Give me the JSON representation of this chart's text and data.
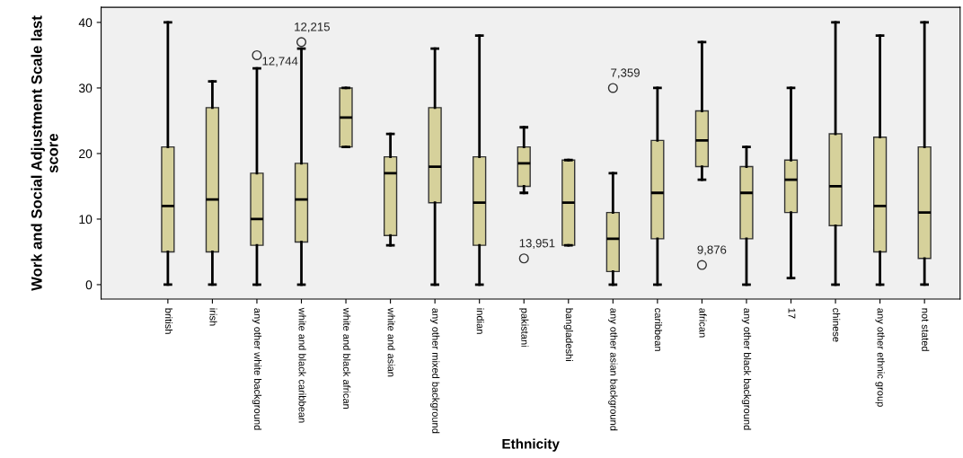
{
  "chart_data": {
    "type": "box",
    "xlabel": "Ethnicity",
    "ylabel": "Work and Social Adjustment Scale last\nscore",
    "categories": [
      "british",
      "irish",
      "any other white background",
      "white and black caribbean",
      "white and black african",
      "white and asian",
      "any other mixed background",
      "indian",
      "pakistani",
      "bangladeshi",
      "any other asian background",
      "caribbean",
      "african",
      "any other black background",
      "17",
      "chinese",
      "any other ethnic group",
      "not stated"
    ],
    "color": "#d6d19b",
    "boxes": [
      {
        "low": 0,
        "q1": 5,
        "median": 12,
        "q3": 21,
        "high": 40
      },
      {
        "low": 0,
        "q1": 5,
        "median": 13,
        "q3": 27,
        "high": 31
      },
      {
        "low": 0,
        "q1": 6,
        "median": 10,
        "q3": 17,
        "high": 33,
        "outliers": [
          35
        ]
      },
      {
        "low": 0,
        "q1": 6.5,
        "median": 13,
        "q3": 18.5,
        "high": 36,
        "outliers": [
          37
        ]
      },
      {
        "low": 21,
        "q1": 21,
        "median": 25.5,
        "q3": 30,
        "high": 30
      },
      {
        "low": 6,
        "q1": 7.5,
        "median": 17,
        "q3": 19.5,
        "high": 23
      },
      {
        "low": 0,
        "q1": 12.5,
        "median": 18,
        "q3": 27,
        "high": 36
      },
      {
        "low": 0,
        "q1": 6,
        "median": 12.5,
        "q3": 19.5,
        "high": 38
      },
      {
        "low": 14,
        "q1": 15,
        "median": 18.5,
        "q3": 21,
        "high": 24,
        "outliers": [
          4
        ]
      },
      {
        "low": 6,
        "q1": 6,
        "median": 12.5,
        "q3": 19,
        "high": 19
      },
      {
        "low": 0,
        "q1": 2,
        "median": 7,
        "q3": 11,
        "high": 17,
        "outliers": [
          30
        ]
      },
      {
        "low": 0,
        "q1": 7,
        "median": 14,
        "q3": 22,
        "high": 30
      },
      {
        "low": 16,
        "q1": 18,
        "median": 22,
        "q3": 26.5,
        "high": 37,
        "outliers": [
          3
        ]
      },
      {
        "low": 0,
        "q1": 7,
        "median": 14,
        "q3": 18,
        "high": 21
      },
      {
        "low": 1,
        "q1": 11,
        "median": 16,
        "q3": 19,
        "high": 30
      },
      {
        "low": 0,
        "q1": 9,
        "median": 15,
        "q3": 23,
        "high": 40
      },
      {
        "low": 0,
        "q1": 5,
        "median": 12,
        "q3": 22.5,
        "high": 38
      },
      {
        "low": 0,
        "q1": 4,
        "median": 11,
        "q3": 21,
        "high": 40
      }
    ],
    "annotations": [
      "12,744",
      "12,215",
      "13,951",
      "7,359",
      "9,876"
    ],
    "ylim": [
      -2.2,
      42.3
    ],
    "yticks": [
      0,
      10,
      20,
      30,
      40
    ],
    "grid": false
  }
}
